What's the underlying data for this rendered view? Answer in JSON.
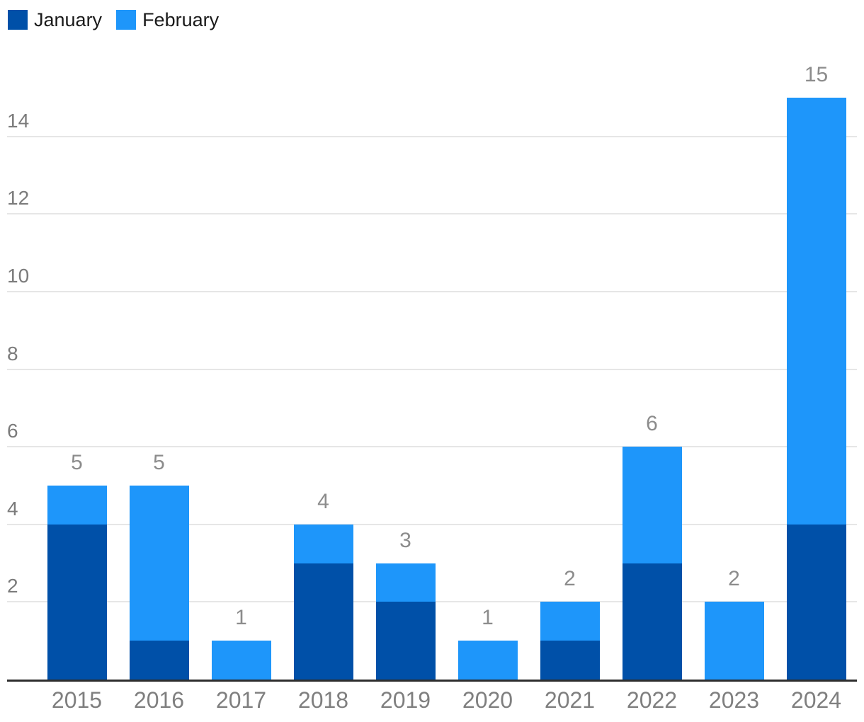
{
  "chart_data": {
    "type": "bar",
    "stacked": true,
    "title": "",
    "categories": [
      "2015",
      "2016",
      "2017",
      "2018",
      "2019",
      "2020",
      "2021",
      "2022",
      "2023",
      "2024"
    ],
    "series": [
      {
        "name": "January",
        "color": "#0050A8",
        "values": [
          4,
          1,
          0,
          3,
          2,
          0,
          1,
          3,
          0,
          4
        ]
      },
      {
        "name": "February",
        "color": "#1E96FA",
        "values": [
          1,
          4,
          1,
          1,
          1,
          1,
          1,
          3,
          2,
          11
        ]
      }
    ],
    "totals": [
      5,
      5,
      1,
      4,
      3,
      1,
      2,
      6,
      2,
      15
    ],
    "yticks": [
      2,
      4,
      6,
      8,
      10,
      12,
      14
    ],
    "ylim": [
      0,
      15
    ],
    "grid": "horizontal",
    "legend_position": "top-left",
    "colors": {
      "gridline": "#e6e6e6",
      "baseline": "#2e2e2e",
      "ytick_text": "#7b7b7b",
      "value_label_text": "#8c8c8c",
      "year_label_text": "#7f7f7f",
      "legend_text": "#1a1a1a"
    }
  }
}
